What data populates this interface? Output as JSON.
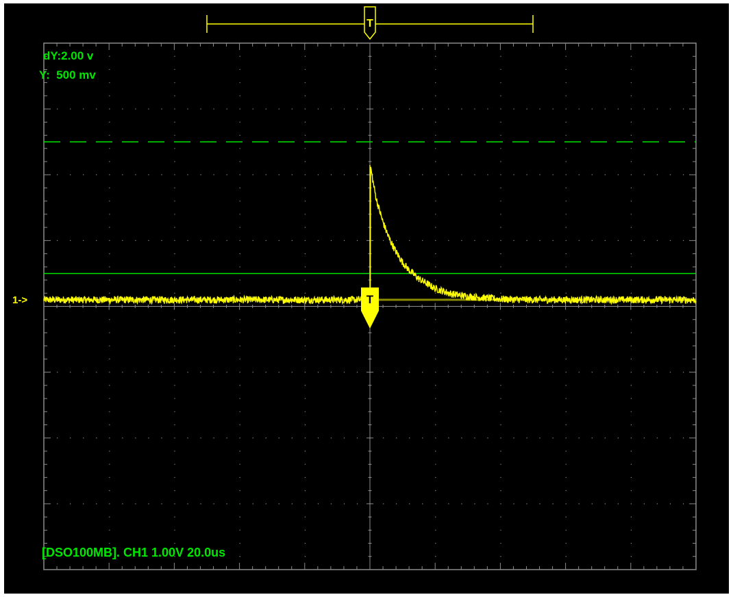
{
  "readouts": {
    "dy": "dY:2.00 v",
    "y": "Y:  500 mv"
  },
  "channel_marker": "1->",
  "trigger_label": "T",
  "status_line": "[DSO100MB]. CH1 1.00V 20.0us",
  "colors": {
    "background": "#000000",
    "grid": "#8c8c8c",
    "trace": "#ffff00",
    "cursor": "#00e600",
    "text": "#00e600"
  },
  "chart_data": {
    "type": "line",
    "title": "",
    "xlabel": "",
    "ylabel": "",
    "grid": true,
    "divisions": {
      "x": 10,
      "y": 8
    },
    "volts_per_div": 1.0,
    "time_per_div_us": 20.0,
    "xlim": [
      -100,
      100
    ],
    "ylim": [
      -4,
      4
    ],
    "channel_offset_div": 0.0,
    "trigger": {
      "time_us": 0,
      "pre_trigger_window_us": [
        -50,
        50
      ]
    },
    "cursors": [
      {
        "name": "upper",
        "style": "dashed",
        "y_volts": 2.5
      },
      {
        "name": "lower",
        "style": "solid",
        "y_volts": 0.5
      }
    ],
    "series": [
      {
        "x": [
          -100,
          -90,
          -80,
          -70,
          -60,
          -50,
          -40,
          -30,
          -20,
          -10,
          0,
          0.1,
          1,
          2,
          4,
          6,
          8,
          10,
          12,
          15,
          20,
          25,
          30,
          40,
          50,
          60,
          70,
          80,
          90,
          100
        ],
        "values": [
          0.1,
          0.1,
          0.1,
          0.1,
          0.1,
          0.1,
          0.1,
          0.1,
          0.1,
          0.1,
          0.1,
          2.15,
          1.88,
          1.62,
          1.28,
          1.02,
          0.83,
          0.67,
          0.55,
          0.42,
          0.27,
          0.19,
          0.15,
          0.11,
          0.1,
          0.1,
          0.1,
          0.1,
          0.1,
          0.1
        ]
      }
    ]
  }
}
